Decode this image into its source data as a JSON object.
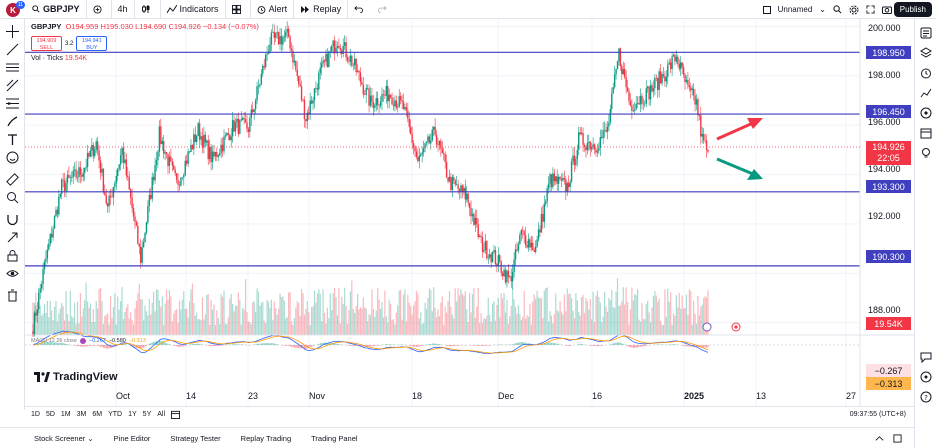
{
  "topbar": {
    "avatar_letter": "K",
    "notif_count": "11",
    "symbol": "GBPJPY",
    "interval": "4h",
    "indicators_label": "Indicators",
    "alert_label": "Alert",
    "replay_label": "Replay",
    "layout_name": "Unnamed",
    "publish_label": "Publish"
  },
  "legend": {
    "symbol": "GBPJPY",
    "ohlc": "O194.959 H195.030 L194.690 C194.926 −0.134 (−0.07%)",
    "sell_price": "194.909",
    "sell_label": "SELL",
    "spread": "3.2",
    "buy_price": "194.941",
    "buy_label": "BUY",
    "vol_label": "Vol · Ticks",
    "vol_value": "19.54K",
    "macd_label": "MACD 12 26 close",
    "macd_v1": "−0.267",
    "macd_v2": "−0.580",
    "macd_v3": "−0.313"
  },
  "price_scale": {
    "ticks": [
      "200.000",
      "198.000",
      "196.000",
      "194.000",
      "192.000",
      "188.000"
    ],
    "levels": [
      {
        "label": "198.950",
        "value": 198.95
      },
      {
        "label": "196.450",
        "value": 196.45
      },
      {
        "label": "193.300",
        "value": 193.3
      },
      {
        "label": "190.300",
        "value": 190.3
      }
    ],
    "current_price": "194.926",
    "countdown": "22:05",
    "vol_badge": "19.54K",
    "macd_badge1": "−0.267",
    "macd_badge2": "−0.313"
  },
  "time_axis": {
    "labels": [
      "Oct",
      "14",
      "23",
      "Nov",
      "18",
      "Dec",
      "16",
      "2025",
      "13",
      "27"
    ]
  },
  "timebar": {
    "ranges": [
      "1D",
      "5D",
      "1M",
      "3M",
      "6M",
      "YTD",
      "1Y",
      "5Y",
      "All"
    ],
    "clock": "09:37:55 (UTC+8)"
  },
  "bottombar": {
    "tabs": [
      "Stock Screener",
      "Pine Editor",
      "Strategy Tester",
      "Replay Trading",
      "Trading Panel"
    ]
  },
  "branding": {
    "logo_text": "TradingView"
  },
  "colors": {
    "up": "#089981",
    "down": "#f23645",
    "level_line": "#3f3fbf",
    "level_label_bg": "#3f3fbf",
    "arrow_up": "#f23645",
    "arrow_down": "#089981"
  },
  "chart_data": {
    "type": "candlestick",
    "symbol": "GBPJPY",
    "interval": "4h",
    "y_range": [
      187.5,
      200.3
    ],
    "key_points": [
      {
        "x": "Oct start",
        "price": 190.3
      },
      {
        "x": "23",
        "price": 199.6
      },
      {
        "x": "Nov",
        "price": 196.3
      },
      {
        "x": "Nov 5",
        "price": 199.5
      },
      {
        "x": "18",
        "price": 194.3
      },
      {
        "x": "Dec",
        "price": 189.8
      },
      {
        "x": "16",
        "price": 195.0
      },
      {
        "x": "Dec 19",
        "price": 198.9
      },
      {
        "x": "Dec 27",
        "price": 198.8
      },
      {
        "x": "2025",
        "price": 194.926
      }
    ],
    "horizontal_levels": [
      198.95,
      196.45,
      193.3,
      190.3
    ],
    "annotations": [
      "red arrow up",
      "green arrow down"
    ]
  }
}
